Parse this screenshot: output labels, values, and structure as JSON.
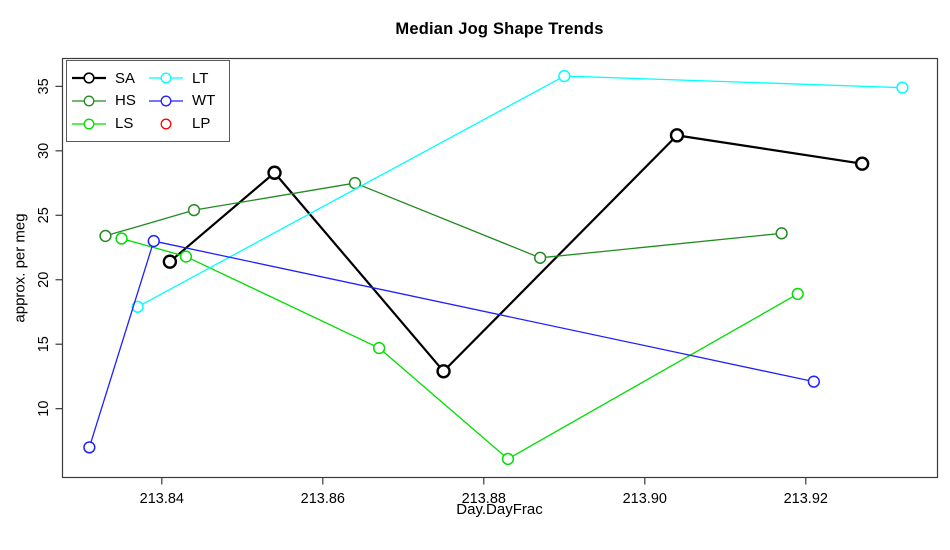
{
  "title": "Median Jog Shape Trends",
  "legend": {
    "position": "top-left",
    "items": [
      {
        "label": "SA",
        "has_line": true
      },
      {
        "label": "HS",
        "has_line": true
      },
      {
        "label": "LS",
        "has_line": true
      },
      {
        "label": "LT",
        "has_line": true
      },
      {
        "label": "WT",
        "has_line": true
      },
      {
        "label": "LP",
        "has_line": false
      }
    ]
  },
  "chart_data": {
    "type": "line",
    "title": "Median Jog Shape Trends",
    "xlabel": "Day.DayFrac",
    "ylabel": "approx. per meg",
    "xlim": [
      213.8276,
      213.9363
    ],
    "ylim": [
      4.7,
      37.2
    ],
    "x_ticks": [
      213.84,
      213.86,
      213.88,
      213.9,
      213.92
    ],
    "x_tick_labels": [
      "213.84",
      "213.86",
      "213.88",
      "213.90",
      "213.92"
    ],
    "y_ticks": [
      10,
      15,
      20,
      25,
      30,
      35
    ],
    "y_tick_labels": [
      "10",
      "15",
      "20",
      "25",
      "30",
      "35"
    ],
    "grid": false,
    "marker": "open-circle",
    "axis_color": "#3a3a3a",
    "legend_position": "top-left",
    "series": [
      {
        "name": "SA",
        "color": "#000000",
        "line_width": 2.2,
        "marker_r": 6,
        "points": [
          [
            213.841,
            21.4
          ],
          [
            213.854,
            28.3
          ],
          [
            213.875,
            12.9
          ],
          [
            213.904,
            31.2
          ],
          [
            213.927,
            29.0
          ]
        ]
      },
      {
        "name": "HS",
        "color": "#228B22",
        "line_width": 1.3,
        "marker_r": 5.4,
        "points": [
          [
            213.833,
            23.4
          ],
          [
            213.844,
            25.4
          ],
          [
            213.864,
            27.5
          ],
          [
            213.887,
            21.7
          ],
          [
            213.917,
            23.6
          ]
        ]
      },
      {
        "name": "LS",
        "color": "#00DD00",
        "line_width": 1.3,
        "marker_r": 5.4,
        "points": [
          [
            213.835,
            23.2
          ],
          [
            213.843,
            21.8
          ],
          [
            213.867,
            14.7
          ],
          [
            213.883,
            6.1
          ],
          [
            213.919,
            18.9
          ]
        ]
      },
      {
        "name": "LT",
        "color": "#00FFFF",
        "line_width": 1.3,
        "marker_r": 5.4,
        "points": [
          [
            213.837,
            17.9
          ],
          [
            213.89,
            35.8
          ],
          [
            213.932,
            34.9
          ]
        ]
      },
      {
        "name": "WT",
        "color": "#2020FF",
        "line_width": 1.3,
        "marker_r": 5.4,
        "points": [
          [
            213.831,
            7.0
          ],
          [
            213.839,
            23.0
          ],
          [
            213.921,
            12.1
          ]
        ]
      },
      {
        "name": "LP",
        "color": "#FF0000",
        "line_width": 1.3,
        "marker_r": 5.4,
        "points": []
      }
    ]
  }
}
